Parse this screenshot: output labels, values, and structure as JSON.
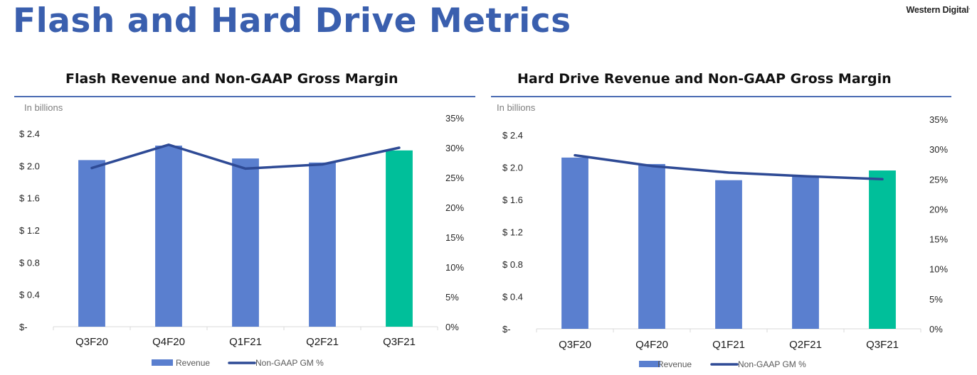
{
  "page": {
    "title": "Flash and Hard Drive Metrics",
    "brand": "Western Digital",
    "brand_mark": "."
  },
  "colors": {
    "title": "#3a5fae",
    "bar": "#5a7fcf",
    "bar_highlight": "#00bf9a",
    "line": "#2e4a95",
    "rule": "#4a6bb3"
  },
  "legend": {
    "bar_label": "Revenue",
    "line_label": "Non-GAAP GM %"
  },
  "chart_data": [
    {
      "type": "bar",
      "title": "Flash Revenue and Non-GAAP Gross Margin",
      "unit_label": "In billions",
      "categories": [
        "Q3F20",
        "Q4F20",
        "Q1F21",
        "Q2F21",
        "Q3F21"
      ],
      "series": [
        {
          "name": "Revenue",
          "type": "bar",
          "axis": "left",
          "values": [
            2.07,
            2.25,
            2.09,
            2.04,
            2.19
          ]
        },
        {
          "name": "Non-GAAP GM %",
          "type": "line",
          "axis": "right",
          "values": [
            26.6,
            30.5,
            26.5,
            27.2,
            30.0
          ]
        }
      ],
      "highlight_index": 4,
      "left_axis": {
        "ylim": [
          0,
          2.4
        ],
        "ticks": [
          0,
          0.4,
          0.8,
          1.2,
          1.6,
          2.0,
          2.4
        ],
        "tick_labels": [
          "$-",
          "$ 0.4",
          "$ 0.8",
          "$ 1.2",
          "$ 1.6",
          "$ 2.0",
          "$ 2.4"
        ]
      },
      "right_axis": {
        "ylim": [
          0,
          35
        ],
        "ticks": [
          0,
          5,
          10,
          15,
          20,
          25,
          30,
          35
        ],
        "tick_labels": [
          "0%",
          "5%",
          "10%",
          "15%",
          "20%",
          "25%",
          "30%",
          "35%"
        ]
      },
      "grid": false,
      "legend_position": "bottom"
    },
    {
      "type": "bar",
      "title": "Hard Drive Revenue and Non-GAAP Gross Margin",
      "unit_label": "In billions",
      "categories": [
        "Q3F20",
        "Q4F20",
        "Q1F21",
        "Q2F21",
        "Q3F21"
      ],
      "series": [
        {
          "name": "Revenue",
          "type": "bar",
          "axis": "left",
          "values": [
            2.12,
            2.04,
            1.84,
            1.89,
            1.96
          ]
        },
        {
          "name": "Non-GAAP GM %",
          "type": "line",
          "axis": "right",
          "values": [
            29.0,
            27.2,
            26.1,
            25.5,
            25.0
          ]
        }
      ],
      "highlight_index": 4,
      "left_axis": {
        "ylim": [
          0,
          2.4
        ],
        "ticks": [
          0,
          0.4,
          0.8,
          1.2,
          1.6,
          2.0,
          2.4
        ],
        "tick_labels": [
          "$-",
          "$ 0.4",
          "$ 0.8",
          "$ 1.2",
          "$ 1.6",
          "$ 2.0",
          "$ 2.4"
        ]
      },
      "right_axis": {
        "ylim": [
          0,
          35
        ],
        "ticks": [
          0,
          5,
          10,
          15,
          20,
          25,
          30,
          35
        ],
        "tick_labels": [
          "0%",
          "5%",
          "10%",
          "15%",
          "20%",
          "25%",
          "30%",
          "35%"
        ]
      },
      "grid": false,
      "legend_position": "bottom"
    }
  ]
}
